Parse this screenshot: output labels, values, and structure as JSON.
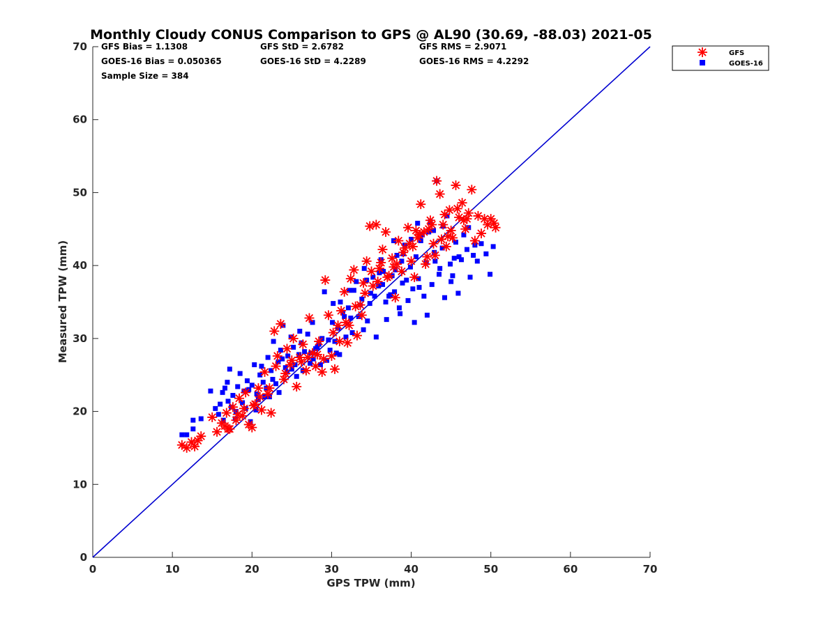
{
  "chart_data": {
    "type": "scatter",
    "title": "Monthly Cloudy CONUS Comparison to GPS @ AL90 (30.69, -88.03) 2021-05",
    "xlabel": "GPS TPW (mm)",
    "ylabel": "Measured TPW (mm)",
    "xlim": [
      0,
      70
    ],
    "ylim": [
      0,
      70
    ],
    "xticks": [
      "0",
      "10",
      "20",
      "30",
      "40",
      "50",
      "60",
      "70"
    ],
    "yticks": [
      "0",
      "10",
      "20",
      "30",
      "40",
      "50",
      "60",
      "70"
    ],
    "grid": false,
    "legend_position": "top-right-outside",
    "stats": {
      "gfs_bias": "GFS Bias = 1.1308",
      "goes_bias": "GOES-16 Bias = 0.050365",
      "sample_size": "Sample Size = 384",
      "gfs_std": "GFS StD = 2.6782",
      "goes_std": "GOES-16 StD = 4.2289",
      "gfs_rms": "GFS RMS = 2.9071",
      "goes_rms": "GOES-16 RMS = 4.2292"
    },
    "reference_line": {
      "name": "1:1 line",
      "color": "#0000d0",
      "points": [
        [
          0,
          0
        ],
        [
          70,
          70
        ]
      ]
    },
    "series": [
      {
        "name": "GOES-16",
        "marker": "square",
        "color": "#0000ff",
        "points": [
          [
            11.2,
            16.8
          ],
          [
            11.8,
            16.8
          ],
          [
            12.6,
            18.8
          ],
          [
            12.6,
            17.6
          ],
          [
            13.6,
            19.0
          ],
          [
            14.8,
            22.8
          ],
          [
            15.4,
            20.4
          ],
          [
            15.8,
            19.6
          ],
          [
            16.0,
            21.0
          ],
          [
            16.3,
            22.6
          ],
          [
            16.6,
            23.2
          ],
          [
            16.9,
            24.0
          ],
          [
            17.2,
            25.8
          ],
          [
            17.4,
            20.6
          ],
          [
            17.6,
            22.2
          ],
          [
            17.9,
            19.0
          ],
          [
            18.2,
            23.4
          ],
          [
            18.5,
            25.2
          ],
          [
            18.8,
            21.2
          ],
          [
            19.0,
            22.8
          ],
          [
            19.4,
            24.2
          ],
          [
            19.8,
            18.6
          ],
          [
            20.0,
            23.6
          ],
          [
            20.3,
            26.4
          ],
          [
            20.6,
            22.4
          ],
          [
            21.0,
            25.0
          ],
          [
            21.4,
            24.0
          ],
          [
            21.8,
            23.2
          ],
          [
            22.0,
            27.4
          ],
          [
            22.4,
            25.6
          ],
          [
            22.7,
            29.6
          ],
          [
            23.0,
            23.8
          ],
          [
            23.3,
            26.8
          ],
          [
            23.6,
            28.4
          ],
          [
            23.9,
            31.8
          ],
          [
            24.2,
            26.0
          ],
          [
            24.5,
            27.6
          ],
          [
            24.9,
            30.2
          ],
          [
            25.2,
            28.8
          ],
          [
            25.6,
            24.8
          ],
          [
            25.9,
            27.8
          ],
          [
            26.2,
            29.4
          ],
          [
            26.6,
            28.2
          ],
          [
            27.0,
            30.6
          ],
          [
            27.3,
            26.6
          ],
          [
            27.7,
            27.2
          ],
          [
            28.0,
            28.6
          ],
          [
            28.4,
            29.2
          ],
          [
            28.8,
            30.0
          ],
          [
            29.1,
            36.4
          ],
          [
            29.4,
            27.0
          ],
          [
            29.8,
            28.4
          ],
          [
            30.1,
            32.2
          ],
          [
            30.4,
            29.6
          ],
          [
            30.8,
            31.4
          ],
          [
            31.1,
            35.0
          ],
          [
            31.4,
            33.6
          ],
          [
            31.8,
            30.2
          ],
          [
            32.1,
            34.2
          ],
          [
            32.4,
            32.8
          ],
          [
            32.8,
            36.6
          ],
          [
            33.1,
            37.8
          ],
          [
            33.4,
            33.0
          ],
          [
            33.8,
            35.4
          ],
          [
            34.1,
            39.6
          ],
          [
            34.5,
            32.4
          ],
          [
            34.9,
            36.2
          ],
          [
            35.2,
            38.4
          ],
          [
            35.6,
            30.2
          ],
          [
            35.9,
            37.2
          ],
          [
            36.2,
            40.8
          ],
          [
            36.5,
            39.2
          ],
          [
            36.9,
            32.6
          ],
          [
            37.2,
            35.8
          ],
          [
            37.6,
            38.6
          ],
          [
            37.9,
            36.4
          ],
          [
            38.2,
            41.4
          ],
          [
            38.5,
            34.2
          ],
          [
            38.9,
            37.6
          ],
          [
            39.2,
            42.8
          ],
          [
            39.6,
            35.2
          ],
          [
            39.9,
            39.8
          ],
          [
            40.2,
            36.8
          ],
          [
            40.6,
            41.2
          ],
          [
            40.9,
            38.2
          ],
          [
            41.2,
            43.4
          ],
          [
            41.6,
            35.8
          ],
          [
            41.9,
            40.4
          ],
          [
            42.2,
            44.6
          ],
          [
            42.6,
            37.4
          ],
          [
            42.9,
            41.8
          ],
          [
            43.2,
            51.6
          ],
          [
            43.5,
            38.8
          ],
          [
            43.9,
            42.4
          ],
          [
            44.2,
            35.6
          ],
          [
            44.5,
            46.8
          ],
          [
            44.9,
            40.2
          ],
          [
            45.2,
            38.6
          ],
          [
            45.6,
            43.2
          ],
          [
            45.9,
            36.2
          ],
          [
            46.3,
            40.8
          ],
          [
            46.6,
            44.2
          ],
          [
            47.0,
            42.2
          ],
          [
            47.4,
            38.4
          ],
          [
            47.8,
            41.4
          ],
          [
            48.3,
            40.6
          ],
          [
            48.8,
            43.0
          ],
          [
            49.4,
            41.6
          ],
          [
            49.9,
            38.8
          ],
          [
            50.3,
            42.6
          ],
          [
            19.2,
            20.4
          ],
          [
            20.8,
            21.6
          ],
          [
            22.6,
            24.4
          ],
          [
            24.4,
            25.4
          ],
          [
            26.4,
            25.6
          ],
          [
            28.2,
            28.8
          ],
          [
            30.6,
            28.0
          ],
          [
            32.6,
            30.8
          ],
          [
            34.8,
            34.8
          ],
          [
            36.8,
            35.0
          ],
          [
            38.6,
            33.4
          ],
          [
            40.4,
            32.2
          ],
          [
            42.0,
            33.2
          ],
          [
            43.6,
            39.6
          ],
          [
            45.4,
            41.0
          ],
          [
            47.2,
            45.2
          ],
          [
            39.0,
            41.6
          ],
          [
            41.4,
            44.2
          ],
          [
            37.8,
            43.4
          ],
          [
            35.4,
            35.8
          ],
          [
            33.6,
            34.6
          ],
          [
            31.6,
            33.0
          ],
          [
            29.6,
            29.8
          ],
          [
            27.4,
            28.0
          ],
          [
            25.4,
            26.4
          ],
          [
            23.4,
            22.6
          ],
          [
            21.6,
            22.0
          ],
          [
            18.0,
            20.0
          ],
          [
            16.4,
            18.8
          ],
          [
            17.0,
            21.4
          ],
          [
            19.6,
            23.0
          ],
          [
            21.2,
            26.2
          ],
          [
            23.8,
            27.2
          ],
          [
            26.0,
            31.0
          ],
          [
            28.6,
            26.4
          ],
          [
            30.2,
            34.8
          ],
          [
            32.2,
            36.6
          ],
          [
            34.4,
            38.0
          ],
          [
            36.4,
            37.4
          ],
          [
            38.0,
            39.4
          ],
          [
            40.0,
            43.6
          ],
          [
            42.4,
            46.0
          ],
          [
            44.0,
            45.4
          ],
          [
            46.0,
            41.2
          ],
          [
            48.0,
            42.8
          ],
          [
            41.0,
            37.0
          ],
          [
            39.4,
            38.0
          ],
          [
            37.4,
            36.0
          ],
          [
            43.0,
            40.6
          ],
          [
            45.0,
            37.8
          ],
          [
            40.8,
            45.8
          ],
          [
            42.8,
            44.8
          ],
          [
            38.8,
            40.6
          ],
          [
            36.0,
            39.0
          ],
          [
            34.0,
            31.2
          ],
          [
            31.0,
            27.8
          ],
          [
            27.6,
            32.2
          ],
          [
            25.0,
            25.8
          ],
          [
            22.2,
            22.0
          ],
          [
            20.5,
            20.2
          ]
        ]
      },
      {
        "name": "GFS",
        "marker": "asterisk",
        "color": "#ff0000",
        "points": [
          [
            11.2,
            15.4
          ],
          [
            11.8,
            15.0
          ],
          [
            12.4,
            15.8
          ],
          [
            12.8,
            15.2
          ],
          [
            13.2,
            16.0
          ],
          [
            13.6,
            16.6
          ],
          [
            15.0,
            19.2
          ],
          [
            15.6,
            17.2
          ],
          [
            16.2,
            18.4
          ],
          [
            16.8,
            19.8
          ],
          [
            17.2,
            17.6
          ],
          [
            17.6,
            20.6
          ],
          [
            18.0,
            18.8
          ],
          [
            18.4,
            21.8
          ],
          [
            18.8,
            19.4
          ],
          [
            19.2,
            22.6
          ],
          [
            19.6,
            18.2
          ],
          [
            20.0,
            17.8
          ],
          [
            20.4,
            21.0
          ],
          [
            20.8,
            23.2
          ],
          [
            21.2,
            20.2
          ],
          [
            21.6,
            25.4
          ],
          [
            22.0,
            22.4
          ],
          [
            22.4,
            19.8
          ],
          [
            22.8,
            31.0
          ],
          [
            23.2,
            27.6
          ],
          [
            23.6,
            32.0
          ],
          [
            24.0,
            24.4
          ],
          [
            24.4,
            28.6
          ],
          [
            24.8,
            26.4
          ],
          [
            25.2,
            30.0
          ],
          [
            25.6,
            23.4
          ],
          [
            26.0,
            27.4
          ],
          [
            26.4,
            29.2
          ],
          [
            26.8,
            25.6
          ],
          [
            27.2,
            32.8
          ],
          [
            27.6,
            28.0
          ],
          [
            28.0,
            26.2
          ],
          [
            28.4,
            29.6
          ],
          [
            28.8,
            25.4
          ],
          [
            29.2,
            38.0
          ],
          [
            29.6,
            33.2
          ],
          [
            30.0,
            27.6
          ],
          [
            30.4,
            25.8
          ],
          [
            30.8,
            31.8
          ],
          [
            31.2,
            33.8
          ],
          [
            31.6,
            36.4
          ],
          [
            32.0,
            29.4
          ],
          [
            32.4,
            38.2
          ],
          [
            32.8,
            39.4
          ],
          [
            33.2,
            30.4
          ],
          [
            33.6,
            34.6
          ],
          [
            34.0,
            37.6
          ],
          [
            34.4,
            40.6
          ],
          [
            34.8,
            45.4
          ],
          [
            35.2,
            37.2
          ],
          [
            35.6,
            45.6
          ],
          [
            36.0,
            39.6
          ],
          [
            36.4,
            42.2
          ],
          [
            36.8,
            44.6
          ],
          [
            37.2,
            38.6
          ],
          [
            37.6,
            41.0
          ],
          [
            38.0,
            35.6
          ],
          [
            38.4,
            43.4
          ],
          [
            38.8,
            39.2
          ],
          [
            39.2,
            42.4
          ],
          [
            39.6,
            45.2
          ],
          [
            40.0,
            40.6
          ],
          [
            40.4,
            38.4
          ],
          [
            40.8,
            43.8
          ],
          [
            41.2,
            48.4
          ],
          [
            41.6,
            44.6
          ],
          [
            42.0,
            41.2
          ],
          [
            42.4,
            46.2
          ],
          [
            42.8,
            43.0
          ],
          [
            43.2,
            51.6
          ],
          [
            43.6,
            49.8
          ],
          [
            44.0,
            45.6
          ],
          [
            44.4,
            42.6
          ],
          [
            44.8,
            47.6
          ],
          [
            45.2,
            43.8
          ],
          [
            45.6,
            51.0
          ],
          [
            46.0,
            46.6
          ],
          [
            46.4,
            48.6
          ],
          [
            46.8,
            45.0
          ],
          [
            47.2,
            47.2
          ],
          [
            47.6,
            50.4
          ],
          [
            48.0,
            43.4
          ],
          [
            48.4,
            46.8
          ],
          [
            48.8,
            44.4
          ],
          [
            49.2,
            46.4
          ],
          [
            49.6,
            45.6
          ],
          [
            50.0,
            46.4
          ],
          [
            50.4,
            45.8
          ],
          [
            50.6,
            45.2
          ],
          [
            17.0,
            17.6
          ],
          [
            19.0,
            20.4
          ],
          [
            21.0,
            22.0
          ],
          [
            23.0,
            26.2
          ],
          [
            25.0,
            27.0
          ],
          [
            27.0,
            27.4
          ],
          [
            29.0,
            27.2
          ],
          [
            31.0,
            29.6
          ],
          [
            33.0,
            34.4
          ],
          [
            35.0,
            39.2
          ],
          [
            37.0,
            38.4
          ],
          [
            39.0,
            41.8
          ],
          [
            41.0,
            44.2
          ],
          [
            43.0,
            41.4
          ],
          [
            45.0,
            44.8
          ],
          [
            47.0,
            46.4
          ],
          [
            38.2,
            40.2
          ],
          [
            40.2,
            42.6
          ],
          [
            42.2,
            45.0
          ],
          [
            44.2,
            47.0
          ],
          [
            36.2,
            40.4
          ],
          [
            34.2,
            36.2
          ],
          [
            32.2,
            31.8
          ],
          [
            30.2,
            30.8
          ],
          [
            28.2,
            27.8
          ],
          [
            26.2,
            26.8
          ],
          [
            24.2,
            25.2
          ],
          [
            22.2,
            23.2
          ],
          [
            20.2,
            20.8
          ],
          [
            18.2,
            19.6
          ],
          [
            16.6,
            18.0
          ],
          [
            39.8,
            43.0
          ],
          [
            41.8,
            40.2
          ],
          [
            43.8,
            43.6
          ],
          [
            45.8,
            47.8
          ],
          [
            37.8,
            39.8
          ],
          [
            35.8,
            37.8
          ],
          [
            33.8,
            33.2
          ],
          [
            31.8,
            32.2
          ],
          [
            40.6,
            44.8
          ],
          [
            42.6,
            45.6
          ],
          [
            44.6,
            44.0
          ],
          [
            46.6,
            46.2
          ]
        ]
      }
    ]
  }
}
